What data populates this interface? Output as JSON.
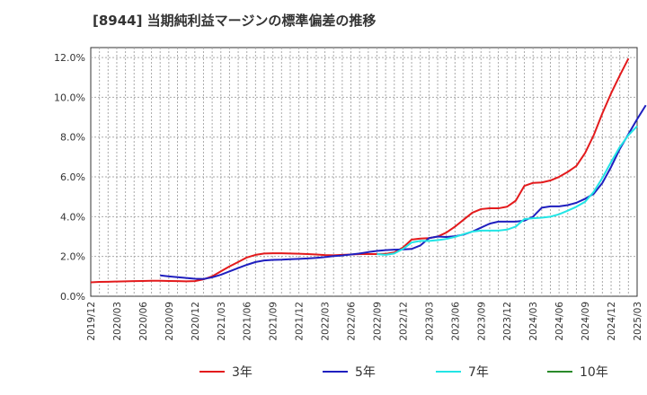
{
  "chart_data": {
    "type": "line",
    "title": "[8944]  当期純利益マージンの標準偏差の推移",
    "xlabel": "",
    "ylabel": "",
    "ylim": [
      0,
      12.5
    ],
    "grid": true,
    "legend_position": "bottom",
    "y_ticks": [
      "0.0%",
      "2.0%",
      "4.0%",
      "6.0%",
      "8.0%",
      "10.0%",
      "12.0%"
    ],
    "y_tick_values": [
      0,
      2,
      4,
      6,
      8,
      10,
      12
    ],
    "x_ticks": [
      "2019/12",
      "2020/03",
      "2020/06",
      "2020/09",
      "2020/12",
      "2021/03",
      "2021/06",
      "2021/09",
      "2021/12",
      "2022/03",
      "2022/06",
      "2022/09",
      "2022/12",
      "2023/03",
      "2023/06",
      "2023/09",
      "2023/12",
      "2024/03",
      "2024/06",
      "2024/09",
      "2024/12",
      "2025/03"
    ],
    "x_start": "2019/12",
    "series": [
      {
        "name": "3年",
        "color": "#e31a1c",
        "start": "2019/12",
        "values": [
          0.7,
          0.72,
          0.73,
          0.74,
          0.75,
          0.76,
          0.77,
          0.78,
          0.78,
          0.77,
          0.76,
          0.75,
          0.76,
          0.85,
          1.0,
          1.25,
          1.5,
          1.72,
          1.95,
          2.08,
          2.15,
          2.16,
          2.16,
          2.15,
          2.14,
          2.12,
          2.1,
          2.07,
          2.06,
          2.08,
          2.1,
          2.12,
          2.12,
          2.12,
          2.13,
          2.2,
          2.45,
          2.85,
          2.9,
          2.92,
          3.0,
          3.2,
          3.5,
          3.85,
          4.2,
          4.38,
          4.42,
          4.42,
          4.5,
          4.8,
          5.55,
          5.7,
          5.72,
          5.82,
          6.0,
          6.25,
          6.55,
          7.2,
          8.1,
          9.2,
          10.2,
          11.1,
          11.95
        ]
      },
      {
        "name": "5年",
        "color": "#1f1fbf",
        "start": "2020/08",
        "values": [
          1.05,
          1.0,
          0.96,
          0.92,
          0.88,
          0.87,
          0.95,
          1.08,
          1.25,
          1.42,
          1.58,
          1.72,
          1.8,
          1.83,
          1.84,
          1.86,
          1.88,
          1.9,
          1.93,
          1.97,
          2.02,
          2.05,
          2.1,
          2.15,
          2.22,
          2.28,
          2.32,
          2.34,
          2.35,
          2.38,
          2.55,
          2.92,
          3.0,
          2.98,
          3.02,
          3.1,
          3.25,
          3.45,
          3.65,
          3.75,
          3.75,
          3.75,
          3.8,
          4.0,
          4.45,
          4.52,
          4.52,
          4.58,
          4.7,
          4.9,
          5.15,
          5.7,
          6.5,
          7.4,
          8.15,
          8.9,
          9.6
        ]
      },
      {
        "name": "7年",
        "color": "#22e5e5",
        "start": "2022/09",
        "values": [
          2.12,
          2.08,
          2.15,
          2.38,
          2.7,
          2.78,
          2.78,
          2.82,
          2.88,
          2.98,
          3.12,
          3.25,
          3.3,
          3.3,
          3.3,
          3.35,
          3.5,
          3.88,
          3.92,
          3.95,
          4.0,
          4.12,
          4.3,
          4.5,
          4.75,
          5.25,
          5.95,
          6.75,
          7.5,
          8.1,
          8.55
        ]
      },
      {
        "name": "10年",
        "color": "#2a8a2a",
        "start": "2019/12",
        "values": []
      }
    ]
  }
}
